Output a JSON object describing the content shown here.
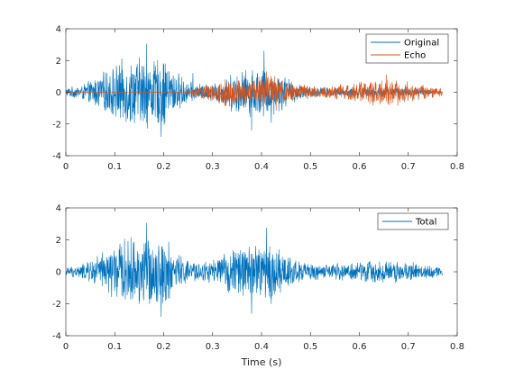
{
  "chart_data": [
    {
      "type": "line",
      "title": "",
      "xlabel": "",
      "ylabel": "",
      "xlim": [
        0,
        0.8
      ],
      "ylim": [
        -4,
        4
      ],
      "xticks": [
        "0",
        "0.1",
        "0.2",
        "0.3",
        "0.4",
        "0.5",
        "0.6",
        "0.7",
        "0.8"
      ],
      "yticks": [
        "4",
        "2",
        "0",
        "-2",
        "-4"
      ],
      "grid": false,
      "legend_position": "top-right",
      "duration_s": 0.77,
      "series": [
        {
          "name": "Original",
          "color": "#0072BD",
          "envelope": [
            [
              0.0,
              0.3
            ],
            [
              0.03,
              0.45
            ],
            [
              0.05,
              0.8
            ],
            [
              0.08,
              1.4
            ],
            [
              0.1,
              1.9
            ],
            [
              0.12,
              2.2
            ],
            [
              0.14,
              2.3
            ],
            [
              0.16,
              2.6
            ],
            [
              0.18,
              2.2
            ],
            [
              0.2,
              2.4
            ],
            [
              0.22,
              1.6
            ],
            [
              0.25,
              0.7
            ],
            [
              0.28,
              0.55
            ],
            [
              0.3,
              0.6
            ],
            [
              0.33,
              1.1
            ],
            [
              0.35,
              1.5
            ],
            [
              0.37,
              1.6
            ],
            [
              0.4,
              1.8
            ],
            [
              0.42,
              1.6
            ],
            [
              0.45,
              1.1
            ],
            [
              0.48,
              0.5
            ],
            [
              0.5,
              0.4
            ],
            [
              0.53,
              0.35
            ],
            [
              0.55,
              0.3
            ],
            [
              0.6,
              0.35
            ],
            [
              0.65,
              0.35
            ],
            [
              0.7,
              0.3
            ],
            [
              0.73,
              0.2
            ],
            [
              0.77,
              0.1
            ]
          ],
          "peaks": [
            [
              0.165,
              3.05
            ],
            [
              0.195,
              -2.8
            ],
            [
              0.26,
              1.2
            ],
            [
              0.38,
              -2.4
            ],
            [
              0.405,
              2.6
            ],
            [
              0.42,
              -1.9
            ]
          ]
        },
        {
          "name": "Echo",
          "color": "#D95319",
          "envelope": [
            [
              0.0,
              0.02
            ],
            [
              0.24,
              0.02
            ],
            [
              0.25,
              0.2
            ],
            [
              0.27,
              0.4
            ],
            [
              0.3,
              0.65
            ],
            [
              0.32,
              0.95
            ],
            [
              0.35,
              1.0
            ],
            [
              0.37,
              0.9
            ],
            [
              0.4,
              1.1
            ],
            [
              0.42,
              1.1
            ],
            [
              0.44,
              0.9
            ],
            [
              0.47,
              0.6
            ],
            [
              0.5,
              0.45
            ],
            [
              0.52,
              0.35
            ],
            [
              0.55,
              0.5
            ],
            [
              0.58,
              0.6
            ],
            [
              0.6,
              0.8
            ],
            [
              0.63,
              0.9
            ],
            [
              0.65,
              0.95
            ],
            [
              0.68,
              0.9
            ],
            [
              0.7,
              0.7
            ],
            [
              0.73,
              0.5
            ],
            [
              0.75,
              0.4
            ],
            [
              0.77,
              0.3
            ]
          ],
          "peaks": [
            [
              0.41,
              1.3
            ],
            [
              0.43,
              -1.15
            ],
            [
              0.655,
              1.1
            ],
            [
              0.66,
              -0.8
            ]
          ]
        }
      ]
    },
    {
      "type": "line",
      "title": "",
      "xlabel": "Time (s)",
      "ylabel": "",
      "xlim": [
        0,
        0.8
      ],
      "ylim": [
        -4,
        4
      ],
      "xticks": [
        "0",
        "0.1",
        "0.2",
        "0.3",
        "0.4",
        "0.5",
        "0.6",
        "0.7",
        "0.8"
      ],
      "yticks": [
        "4",
        "2",
        "0",
        "-2",
        "-4"
      ],
      "grid": false,
      "legend_position": "top-right",
      "duration_s": 0.77,
      "series": [
        {
          "name": "Total",
          "color": "#0072BD",
          "envelope": [
            [
              0.0,
              0.3
            ],
            [
              0.03,
              0.45
            ],
            [
              0.05,
              0.8
            ],
            [
              0.08,
              1.4
            ],
            [
              0.1,
              1.9
            ],
            [
              0.12,
              2.2
            ],
            [
              0.14,
              2.3
            ],
            [
              0.16,
              2.6
            ],
            [
              0.18,
              2.2
            ],
            [
              0.2,
              2.4
            ],
            [
              0.22,
              1.6
            ],
            [
              0.25,
              0.75
            ],
            [
              0.28,
              0.7
            ],
            [
              0.3,
              0.8
            ],
            [
              0.33,
              1.3
            ],
            [
              0.35,
              1.8
            ],
            [
              0.37,
              1.9
            ],
            [
              0.4,
              2.1
            ],
            [
              0.42,
              1.9
            ],
            [
              0.45,
              1.3
            ],
            [
              0.48,
              0.7
            ],
            [
              0.5,
              0.6
            ],
            [
              0.53,
              0.5
            ],
            [
              0.55,
              0.55
            ],
            [
              0.6,
              0.7
            ],
            [
              0.65,
              0.8
            ],
            [
              0.7,
              0.7
            ],
            [
              0.73,
              0.5
            ],
            [
              0.77,
              0.35
            ]
          ],
          "peaks": [
            [
              0.165,
              3.05
            ],
            [
              0.195,
              -2.8
            ],
            [
              0.38,
              -2.6
            ],
            [
              0.41,
              2.75
            ],
            [
              0.42,
              -2.0
            ]
          ]
        }
      ]
    }
  ]
}
